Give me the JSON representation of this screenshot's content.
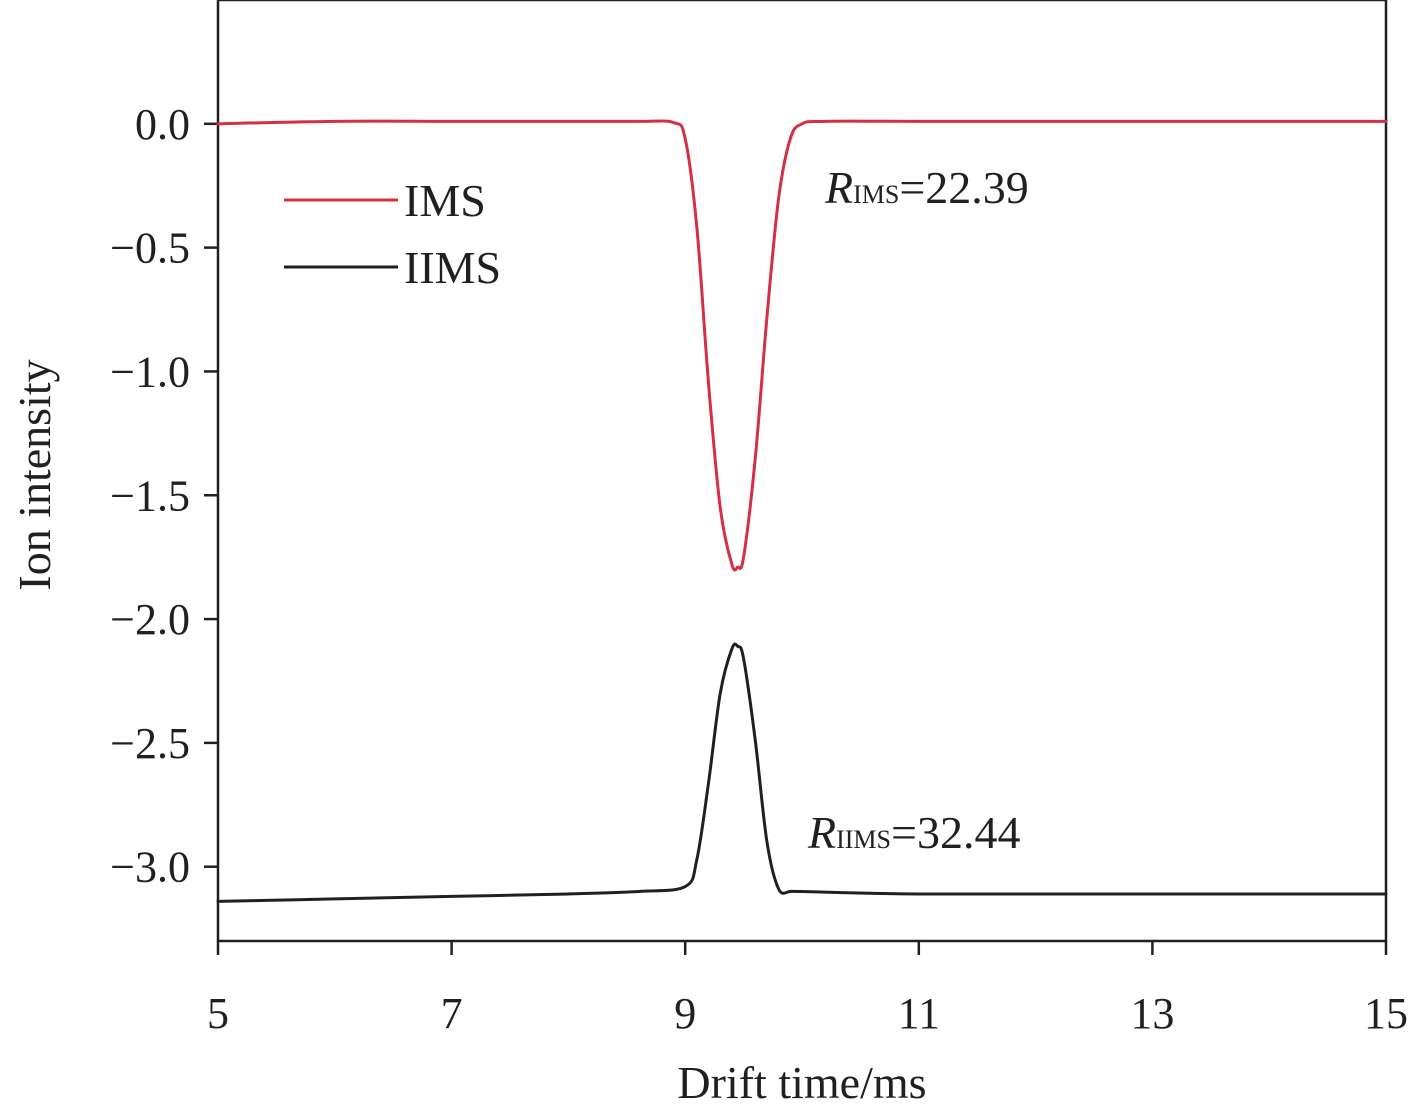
{
  "chart_data": {
    "type": "line",
    "xlabel": "Drift time/ms",
    "ylabel": "Ion intensity",
    "xlim": [
      5,
      15
    ],
    "ylim": [
      -3.3,
      0.5
    ],
    "x_ticks": [
      "5",
      "7",
      "9",
      "11",
      "13",
      "15"
    ],
    "y_ticks": [
      "0.0",
      "−0.5",
      "−1.0",
      "−1.5",
      "−2.0",
      "−2.5",
      "−3.0"
    ],
    "grid": false,
    "legend_position": "top-left",
    "series": [
      {
        "name": "IMS",
        "color": "#d32f45",
        "x": [
          5.0,
          6.0,
          7.0,
          8.0,
          8.6,
          8.9,
          9.0,
          9.1,
          9.2,
          9.3,
          9.4,
          9.45,
          9.5,
          9.6,
          9.7,
          9.8,
          9.9,
          10.0,
          10.2,
          11.0,
          13.0,
          15.0
        ],
        "y": [
          0.0,
          0.01,
          0.01,
          0.01,
          0.01,
          0.005,
          -0.06,
          -0.42,
          -1.05,
          -1.55,
          -1.78,
          -1.79,
          -1.75,
          -1.35,
          -0.78,
          -0.3,
          -0.06,
          0.0,
          0.01,
          0.01,
          0.01,
          0.01
        ]
      },
      {
        "name": "IIMS",
        "color": "#231f20",
        "x": [
          5.0,
          6.0,
          7.0,
          8.0,
          8.6,
          9.0,
          9.1,
          9.2,
          9.3,
          9.4,
          9.45,
          9.5,
          9.6,
          9.7,
          9.8,
          9.9,
          10.0,
          11.0,
          13.0,
          15.0
        ],
        "y": [
          -3.14,
          -3.13,
          -3.12,
          -3.11,
          -3.1,
          -3.08,
          -2.97,
          -2.66,
          -2.3,
          -2.12,
          -2.11,
          -2.16,
          -2.49,
          -2.9,
          -3.09,
          -3.1,
          -3.1,
          -3.11,
          -3.11,
          -3.11
        ]
      }
    ],
    "annotations": [
      {
        "symbol": "R",
        "subscript": "IMS",
        "text": "=22.39"
      },
      {
        "symbol": "R",
        "subscript": "IIMS",
        "text": "=32.44"
      }
    ]
  }
}
